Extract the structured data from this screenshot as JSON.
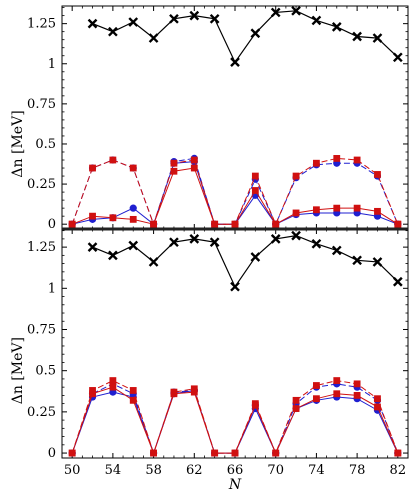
{
  "chart_data": [
    {
      "type": "line",
      "panel": "top",
      "ylabel": "Δn [MeV]",
      "xlabel": "",
      "xlim": [
        49,
        83
      ],
      "ylim": [
        -0.03,
        1.36
      ],
      "yticks": [
        0,
        0.25,
        0.5,
        0.75,
        1,
        1.25
      ],
      "ytick_labels": [
        "0",
        "0.25",
        "0.5",
        "0.75",
        "1",
        "1.25"
      ],
      "xticks": [
        50,
        54,
        58,
        62,
        66,
        70,
        74,
        78,
        82
      ],
      "series": [
        {
          "marker": "x",
          "color": "#000000",
          "style": "solid",
          "x": [
            52,
            54,
            56,
            58,
            60,
            62,
            64,
            66,
            68,
            70,
            72,
            74,
            76,
            78,
            80,
            82
          ],
          "y": [
            1.25,
            1.2,
            1.26,
            1.16,
            1.28,
            1.3,
            1.28,
            1.01,
            1.19,
            1.32,
            1.33,
            1.27,
            1.23,
            1.17,
            1.16,
            1.04
          ]
        },
        {
          "marker": "circle",
          "color": "#1f1fd0",
          "style": "solid",
          "x": [
            50,
            52,
            54,
            56,
            58,
            60,
            62,
            64,
            66,
            68,
            70,
            72,
            74,
            76,
            78,
            80,
            82
          ],
          "y": [
            0.0,
            0.03,
            0.04,
            0.1,
            0.0,
            0.38,
            0.39,
            0.0,
            0.0,
            0.18,
            0.0,
            0.06,
            0.07,
            0.07,
            0.07,
            0.05,
            0.0
          ]
        },
        {
          "marker": "circle",
          "color": "#1f1fd0",
          "style": "dashed",
          "x": [
            50,
            52,
            54,
            56,
            58,
            60,
            62,
            64,
            66,
            68,
            70,
            72,
            74,
            76,
            78,
            80,
            82
          ],
          "y": [
            0.0,
            0.35,
            0.4,
            0.35,
            0.0,
            0.39,
            0.41,
            0.0,
            0.0,
            0.28,
            0.0,
            0.29,
            0.37,
            0.38,
            0.38,
            0.3,
            0.0
          ]
        },
        {
          "marker": "square",
          "color": "#d01010",
          "style": "solid",
          "x": [
            50,
            52,
            54,
            56,
            58,
            60,
            62,
            64,
            66,
            68,
            70,
            72,
            74,
            76,
            78,
            80,
            82
          ],
          "y": [
            0.0,
            0.05,
            0.04,
            0.03,
            0.0,
            0.33,
            0.35,
            0.0,
            0.0,
            0.21,
            0.0,
            0.07,
            0.09,
            0.1,
            0.1,
            0.08,
            0.0
          ]
        },
        {
          "marker": "square",
          "color": "#d01010",
          "style": "dashed",
          "x": [
            50,
            52,
            54,
            56,
            58,
            60,
            62,
            64,
            66,
            68,
            70,
            72,
            74,
            76,
            78,
            80,
            82
          ],
          "y": [
            0.0,
            0.35,
            0.4,
            0.35,
            0.0,
            0.38,
            0.4,
            0.0,
            0.0,
            0.3,
            0.0,
            0.3,
            0.38,
            0.41,
            0.4,
            0.31,
            0.0
          ]
        }
      ]
    },
    {
      "type": "line",
      "panel": "bottom",
      "ylabel": "Δn [MeV]",
      "xlabel": "N",
      "xlim": [
        49,
        83
      ],
      "ylim": [
        -0.03,
        1.36
      ],
      "yticks": [
        0,
        0.25,
        0.5,
        0.75,
        1,
        1.25
      ],
      "ytick_labels": [
        "0",
        "0.25",
        "0.5",
        "0.75",
        "1",
        "1.25"
      ],
      "xticks": [
        50,
        54,
        58,
        62,
        66,
        70,
        74,
        78,
        82
      ],
      "xtick_labels": [
        "50",
        "54",
        "58",
        "62",
        "66",
        "70",
        "74",
        "78",
        "82"
      ],
      "series": [
        {
          "marker": "x",
          "color": "#000000",
          "style": "solid",
          "x": [
            52,
            54,
            56,
            58,
            60,
            62,
            64,
            66,
            68,
            70,
            72,
            74,
            76,
            78,
            80,
            82
          ],
          "y": [
            1.25,
            1.2,
            1.26,
            1.16,
            1.28,
            1.3,
            1.28,
            1.01,
            1.19,
            1.3,
            1.32,
            1.27,
            1.23,
            1.17,
            1.16,
            1.04
          ]
        },
        {
          "marker": "circle",
          "color": "#1f1fd0",
          "style": "solid",
          "x": [
            50,
            52,
            54,
            56,
            58,
            60,
            62,
            64,
            66,
            68,
            70,
            72,
            74,
            76,
            78,
            80,
            82
          ],
          "y": [
            0.0,
            0.34,
            0.37,
            0.34,
            0.0,
            0.36,
            0.38,
            0.0,
            0.0,
            0.27,
            0.0,
            0.27,
            0.32,
            0.34,
            0.33,
            0.26,
            0.0
          ]
        },
        {
          "marker": "circle",
          "color": "#1f1fd0",
          "style": "dashed",
          "x": [
            50,
            52,
            54,
            56,
            58,
            60,
            62,
            64,
            66,
            68,
            70,
            72,
            74,
            76,
            78,
            80,
            82
          ],
          "y": [
            0.0,
            0.36,
            0.42,
            0.36,
            0.0,
            0.37,
            0.38,
            0.0,
            0.0,
            0.29,
            0.0,
            0.3,
            0.4,
            0.42,
            0.4,
            0.32,
            0.0
          ]
        },
        {
          "marker": "square",
          "color": "#d01010",
          "style": "solid",
          "x": [
            50,
            52,
            54,
            56,
            58,
            60,
            62,
            64,
            66,
            68,
            70,
            72,
            74,
            76,
            78,
            80,
            82
          ],
          "y": [
            0.0,
            0.36,
            0.4,
            0.32,
            0.0,
            0.36,
            0.37,
            0.0,
            0.0,
            0.29,
            0.0,
            0.27,
            0.33,
            0.36,
            0.35,
            0.28,
            0.0
          ]
        },
        {
          "marker": "square",
          "color": "#d01010",
          "style": "dashed",
          "x": [
            50,
            52,
            54,
            56,
            58,
            60,
            62,
            64,
            66,
            68,
            70,
            72,
            74,
            76,
            78,
            80,
            82
          ],
          "y": [
            0.0,
            0.38,
            0.44,
            0.38,
            0.0,
            0.37,
            0.39,
            0.0,
            0.0,
            0.3,
            0.0,
            0.32,
            0.41,
            0.44,
            0.42,
            0.33,
            0.0
          ]
        }
      ]
    }
  ]
}
